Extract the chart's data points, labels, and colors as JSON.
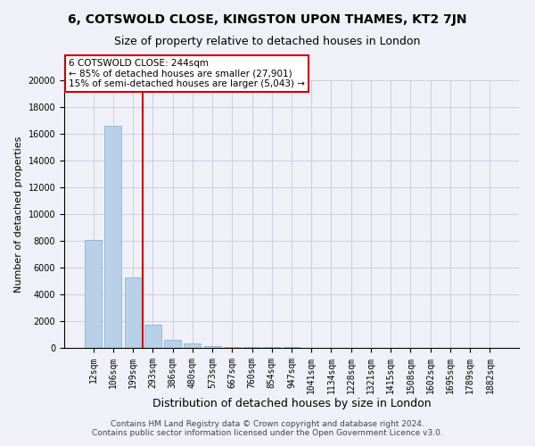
{
  "title1": "6, COTSWOLD CLOSE, KINGSTON UPON THAMES, KT2 7JN",
  "title2": "Size of property relative to detached houses in London",
  "xlabel": "Distribution of detached houses by size in London",
  "ylabel": "Number of detached properties",
  "bar_labels": [
    "12sqm",
    "106sqm",
    "199sqm",
    "293sqm",
    "386sqm",
    "480sqm",
    "573sqm",
    "667sqm",
    "760sqm",
    "854sqm",
    "947sqm",
    "1041sqm",
    "1134sqm",
    "1228sqm",
    "1321sqm",
    "1415sqm",
    "1508sqm",
    "1602sqm",
    "1695sqm",
    "1789sqm",
    "1882sqm"
  ],
  "bar_values": [
    8100,
    16600,
    5300,
    1750,
    600,
    350,
    150,
    100,
    80,
    60,
    40,
    30,
    20,
    15,
    10,
    8,
    5,
    5,
    5,
    5,
    5
  ],
  "bar_color": "#b8d0e8",
  "bar_edge_color": "#7aadd4",
  "grid_color": "#c8c8d8",
  "background_color": "#f0f0f8",
  "vline_x": 2.5,
  "vline_color": "#cc0000",
  "annotation_line1": "6 COTSWOLD CLOSE: 244sqm",
  "annotation_line2": "← 85% of detached houses are smaller (27,901)",
  "annotation_line3": "15% of semi-detached houses are larger (5,043) →",
  "annotation_box_color": "#cc0000",
  "footer_text": "Contains HM Land Registry data © Crown copyright and database right 2024.\nContains public sector information licensed under the Open Government Licence v3.0.",
  "ylim": [
    0,
    20000
  ],
  "yticks": [
    0,
    2000,
    4000,
    6000,
    8000,
    10000,
    12000,
    14000,
    16000,
    18000,
    20000
  ],
  "title1_fontsize": 10,
  "title2_fontsize": 9,
  "xlabel_fontsize": 9,
  "ylabel_fontsize": 8,
  "tick_fontsize": 7,
  "annotation_fontsize": 7.5,
  "footer_fontsize": 6.5
}
